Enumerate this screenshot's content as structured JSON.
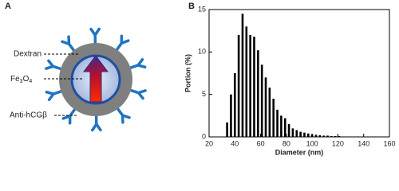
{
  "panel_a": {
    "label": "A",
    "texts": {
      "dextran": "Dextran",
      "core": [
        "Fe",
        "3",
        "O",
        "4"
      ],
      "antibody": "Anti-hCGβ"
    }
  },
  "chart_data": {
    "type": "bar",
    "label": "B",
    "xlabel": "Diameter (nm)",
    "ylabel": "Portion (%)",
    "x": [
      34,
      37,
      40,
      43,
      46,
      49,
      52,
      55,
      58,
      61,
      64,
      67,
      70,
      73,
      76,
      79,
      82,
      85,
      88,
      91,
      94,
      97,
      100,
      103,
      106,
      109,
      112,
      115,
      118,
      121,
      124,
      127,
      130,
      136,
      142,
      148
    ],
    "values": [
      1.7,
      5,
      7.5,
      12,
      14.5,
      13,
      12,
      11.8,
      10.2,
      8.5,
      7,
      5.8,
      4.5,
      3.2,
      2.5,
      2.2,
      1.5,
      1.0,
      0.8,
      0.6,
      0.5,
      0.4,
      0.3,
      0.25,
      0.2,
      0.15,
      0.15,
      0.1,
      0.1,
      0.1,
      0.05,
      0.05,
      0.05,
      0.05,
      0.03,
      0.03
    ],
    "color": "#000000",
    "xlim": [
      20,
      160
    ],
    "xticks": [
      20,
      40,
      60,
      80,
      100,
      120,
      140,
      160
    ],
    "ylim": [
      0,
      15
    ],
    "yticks": [
      0,
      5,
      10,
      15
    ]
  }
}
